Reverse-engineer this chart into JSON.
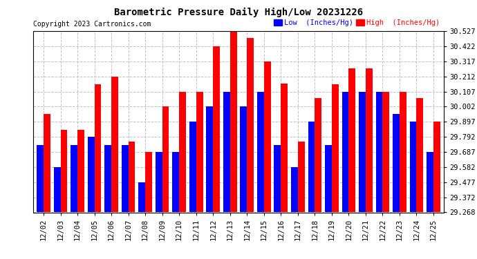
{
  "title": "Barometric Pressure Daily High/Low 20231226",
  "copyright": "Copyright 2023 Cartronics.com",
  "legend_low": "Low  (Inches/Hg)",
  "legend_high": "High  (Inches/Hg)",
  "dates": [
    "12/02",
    "12/03",
    "12/04",
    "12/05",
    "12/06",
    "12/07",
    "12/08",
    "12/09",
    "12/10",
    "12/11",
    "12/12",
    "12/13",
    "12/14",
    "12/15",
    "12/16",
    "12/17",
    "12/18",
    "12/19",
    "12/20",
    "12/21",
    "12/22",
    "12/23",
    "12/24",
    "12/25"
  ],
  "high_values": [
    29.952,
    29.842,
    29.842,
    30.157,
    30.212,
    29.762,
    29.687,
    30.002,
    30.107,
    30.107,
    30.422,
    30.527,
    30.477,
    30.317,
    30.162,
    29.762,
    30.062,
    30.157,
    30.267,
    30.267,
    30.107,
    30.107,
    30.062,
    29.897
  ],
  "low_values": [
    29.737,
    29.582,
    29.737,
    29.792,
    29.737,
    29.737,
    29.477,
    29.687,
    29.687,
    29.897,
    30.002,
    30.107,
    30.002,
    30.107,
    29.737,
    29.582,
    29.897,
    29.737,
    30.107,
    30.107,
    30.107,
    29.952,
    29.897,
    29.687
  ],
  "ymin": 29.268,
  "ymax": 30.527,
  "yticks": [
    29.268,
    29.372,
    29.477,
    29.582,
    29.687,
    29.792,
    29.897,
    30.002,
    30.107,
    30.212,
    30.317,
    30.422,
    30.527
  ],
  "bar_color_high": "#ff0000",
  "bar_color_low": "#0000ff",
  "bg_color": "#ffffff",
  "grid_color": "#bbbbbb",
  "title_color": "#000000",
  "copyright_color": "#000000"
}
